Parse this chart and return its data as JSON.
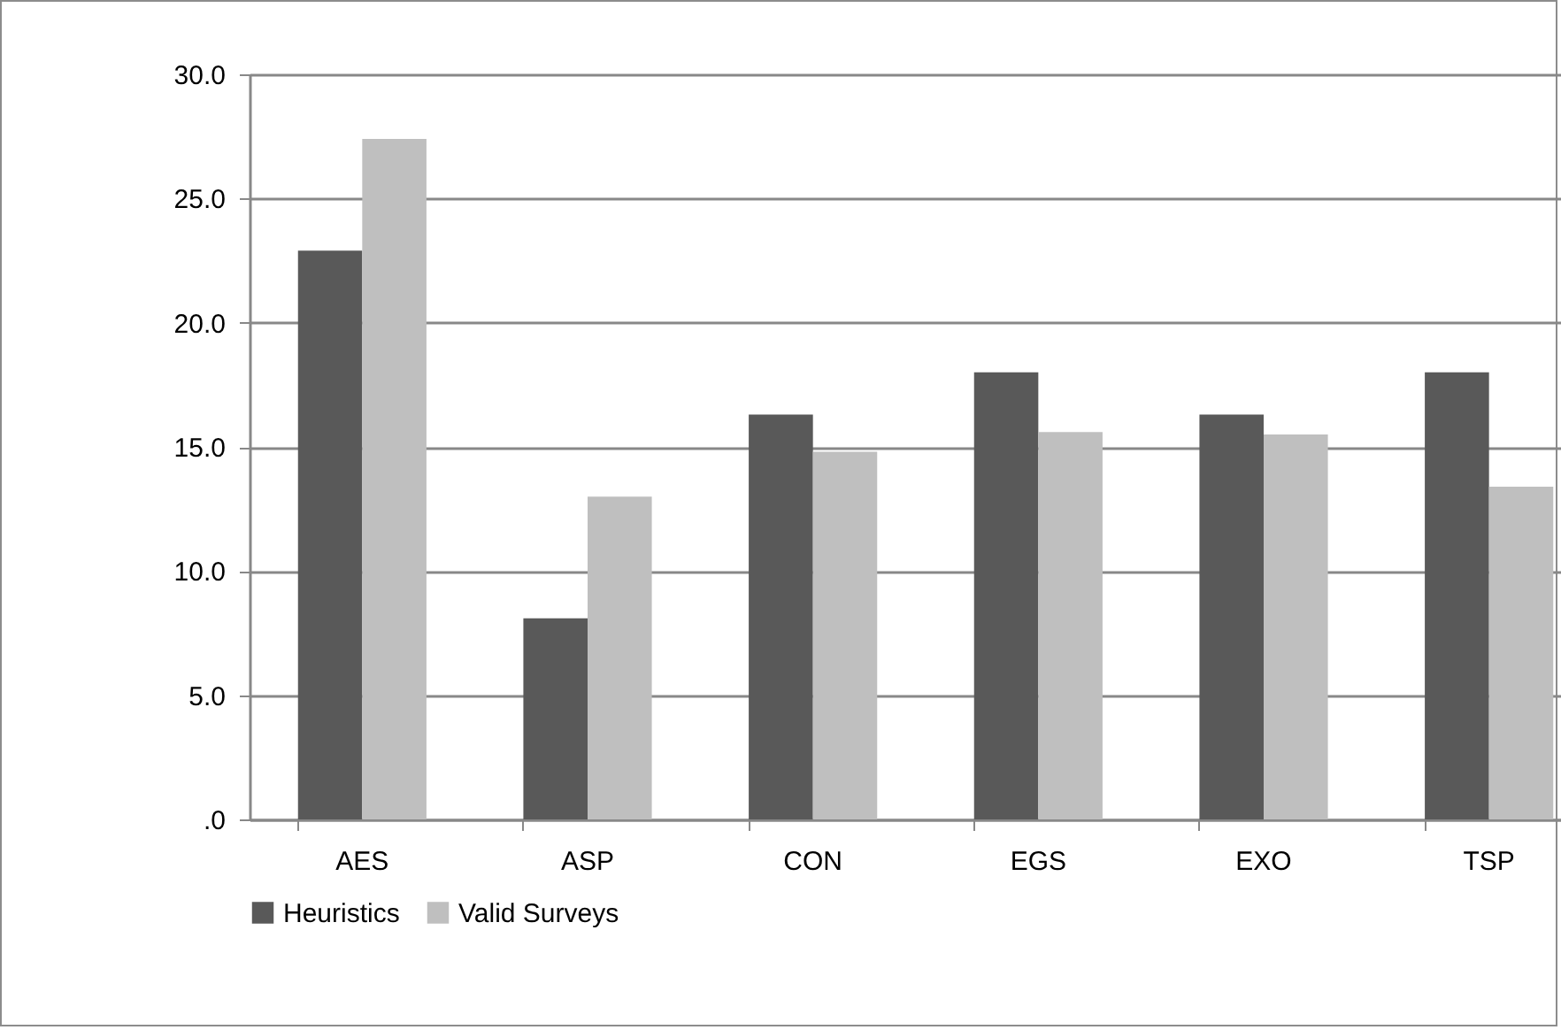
{
  "chart_data": {
    "type": "bar",
    "categories": [
      "AES",
      "ASP",
      "CON",
      "EGS",
      "EXO",
      "TSP"
    ],
    "series": [
      {
        "name": "Heuristics",
        "color": "#595959",
        "values": [
          22.9,
          8.1,
          16.3,
          18.0,
          16.3,
          18.0
        ]
      },
      {
        "name": "Valid Surveys",
        "color": "#bfbfbf",
        "values": [
          27.4,
          13.0,
          14.8,
          15.6,
          15.5,
          13.4
        ]
      }
    ],
    "ylim": [
      0,
      30
    ],
    "yticks": [
      {
        "value": 0,
        "label": ".0"
      },
      {
        "value": 5,
        "label": "5.0"
      },
      {
        "value": 10,
        "label": "10.0"
      },
      {
        "value": 15,
        "label": "15.0"
      },
      {
        "value": 20,
        "label": "20.0"
      },
      {
        "value": 25,
        "label": "25.0"
      },
      {
        "value": 30,
        "label": "30.0"
      }
    ],
    "grid": "y",
    "legend": "bottom"
  }
}
